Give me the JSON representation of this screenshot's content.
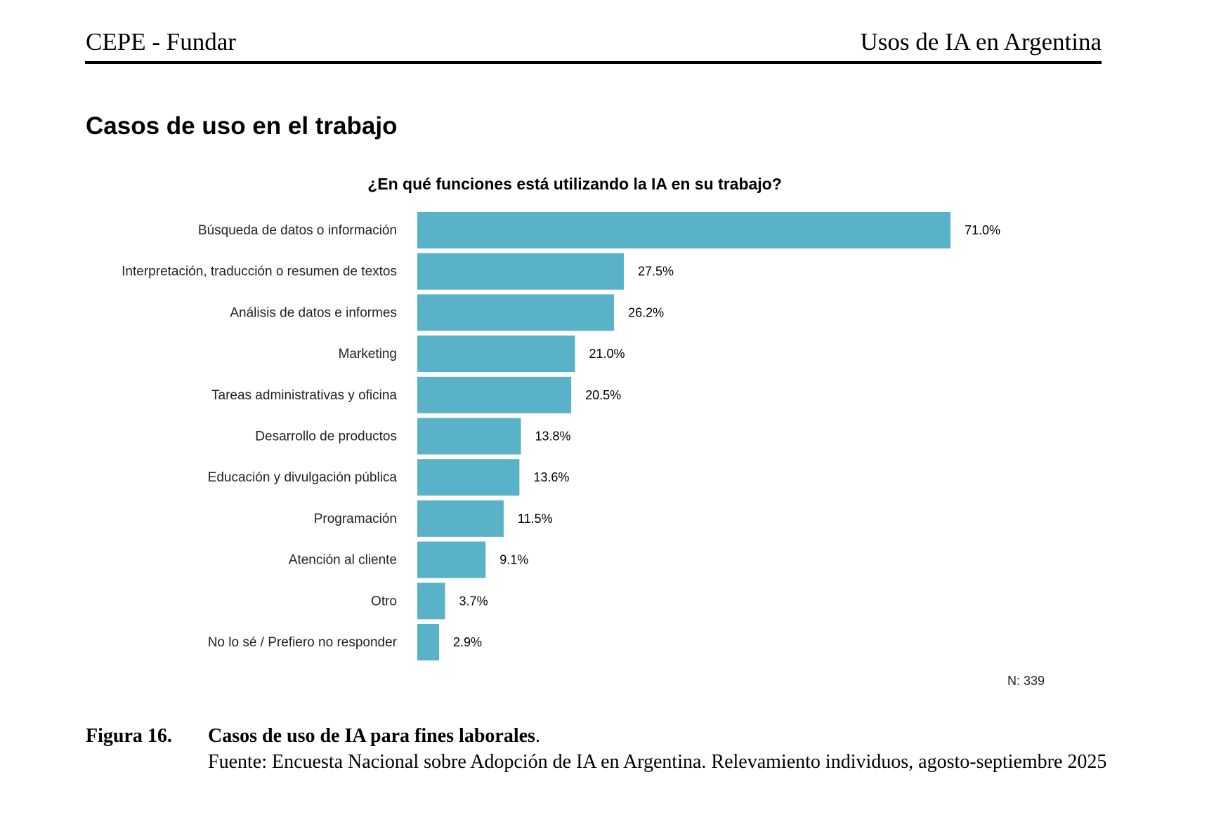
{
  "header": {
    "left": "CEPE - Fundar",
    "right": "Usos de IA en Argentina"
  },
  "section_title": "Casos de uso en el trabajo",
  "chart_data": {
    "type": "bar",
    "orientation": "horizontal",
    "title": "¿En qué funciones está utilizando la IA en su trabajo?",
    "categories": [
      "Búsqueda de datos o información",
      "Interpretación, traducción o resumen de textos",
      "Análisis de datos e informes",
      "Marketing",
      "Tareas administrativas y oficina",
      "Desarrollo de productos",
      "Educación y divulgación pública",
      "Programación",
      "Atención al cliente",
      "Otro",
      "No lo sé / Prefiero no responder"
    ],
    "values": [
      71.0,
      27.5,
      26.2,
      21.0,
      20.5,
      13.8,
      13.6,
      11.5,
      9.1,
      3.7,
      2.9
    ],
    "data_labels": [
      "71.0%",
      "27.5%",
      "26.2%",
      "21.0%",
      "20.5%",
      "13.8%",
      "13.6%",
      "11.5%",
      "9.1%",
      "3.7%",
      "2.9%"
    ],
    "unit": "%",
    "bar_color": "#59b2c8",
    "grid": false,
    "note": "N: 339"
  },
  "caption": {
    "number": "Figura 16.",
    "title": "Casos de uso de IA para fines laborales",
    "source": "Fuente: Encuesta Nacional sobre Adopción de IA en Argentina. Relevamiento individuos, agosto-septiembre 2025"
  }
}
